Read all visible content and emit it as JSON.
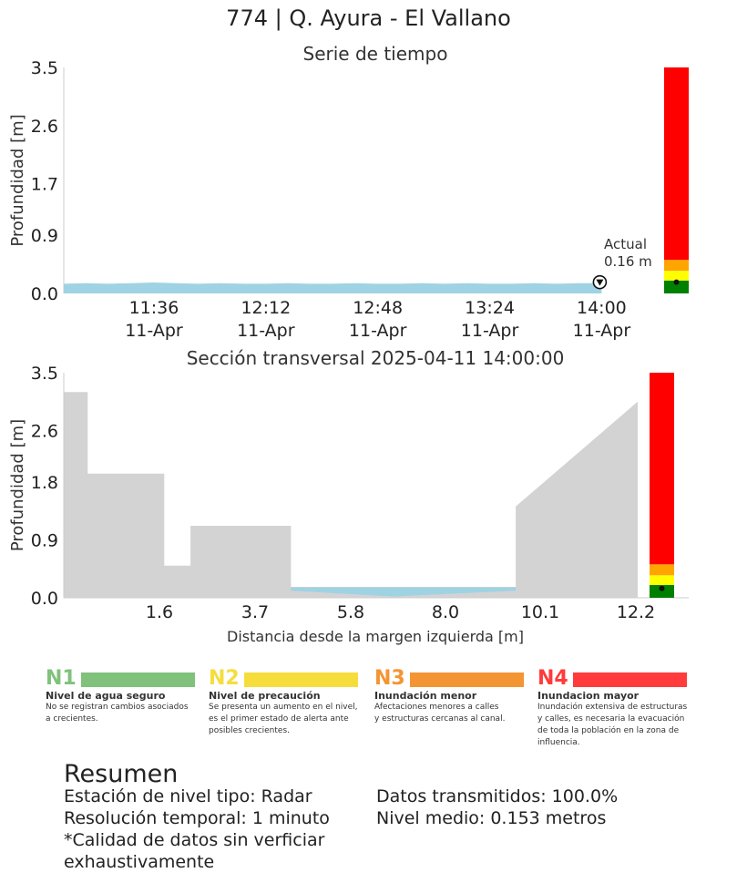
{
  "title": "774 | Q. Ayura - El Vallano",
  "chart_data": [
    {
      "type": "area",
      "title": "Serie de tiempo",
      "ylabel": "Profundidad [m]",
      "ylim": [
        0,
        3.5
      ],
      "yticks": [
        "0.0",
        "0.9",
        "1.7",
        "2.6",
        "3.5"
      ],
      "xticks": [
        {
          "time": "11:36",
          "date": "11-Apr"
        },
        {
          "time": "12:12",
          "date": "11-Apr"
        },
        {
          "time": "12:48",
          "date": "11-Apr"
        },
        {
          "time": "13:24",
          "date": "11-Apr"
        },
        {
          "time": "14:00",
          "date": "11-Apr"
        }
      ],
      "x_range": [
        "11:07",
        "14:16"
      ],
      "series_depth": [
        0.15,
        0.16,
        0.15,
        0.16,
        0.17,
        0.16,
        0.15,
        0.16,
        0.15,
        0.15,
        0.16,
        0.15,
        0.15,
        0.16,
        0.15,
        0.15,
        0.16,
        0.15,
        0.16,
        0.15,
        0.15,
        0.16,
        0.15,
        0.16,
        0.16
      ],
      "current": {
        "label": "Actual",
        "value_text": "0.16 m",
        "value": 0.16
      },
      "alert_levels": [
        {
          "from": 0.0,
          "to": 0.2,
          "color": "#008000"
        },
        {
          "from": 0.2,
          "to": 0.35,
          "color": "#ffff00"
        },
        {
          "from": 0.35,
          "to": 0.52,
          "color": "#ffa500"
        },
        {
          "from": 0.52,
          "to": 3.5,
          "color": "#ff0000"
        }
      ]
    },
    {
      "type": "area",
      "title": "Sección transversal 2025-04-11 14:00:00",
      "ylabel": "Profundidad [m]",
      "xlabel": "Distancia desde la margen izquierda [m]",
      "ylim": [
        0,
        3.5
      ],
      "xlim": [
        0,
        12.6
      ],
      "yticks": [
        "0.0",
        "0.9",
        "1.8",
        "2.6",
        "3.5"
      ],
      "xticks": [
        "1.6",
        "3.7",
        "5.8",
        "8.0",
        "10.1",
        "12.2"
      ],
      "xtick_values": [
        1.6,
        3.7,
        5.8,
        8.0,
        10.1,
        12.2
      ],
      "profile": [
        [
          0,
          3.2
        ],
        [
          0.5,
          3.2
        ],
        [
          0.5,
          1.93
        ],
        [
          2.1,
          1.93
        ],
        [
          2.1,
          0.5
        ],
        [
          2.65,
          0.5
        ],
        [
          2.65,
          1.12
        ],
        [
          4.75,
          1.12
        ],
        [
          4.75,
          0.17
        ],
        [
          9.45,
          0.17
        ],
        [
          9.45,
          1.42
        ],
        [
          12.0,
          3.05
        ],
        [
          12.0,
          0
        ]
      ],
      "water": [
        [
          4.75,
          0.16
        ],
        [
          9.45,
          0.16
        ],
        [
          9.45,
          0.11
        ],
        [
          6.9,
          0.02
        ],
        [
          4.75,
          0.11
        ]
      ],
      "water_level": 0.16,
      "alert_levels": [
        {
          "from": 0.0,
          "to": 0.2,
          "color": "#008000"
        },
        {
          "from": 0.2,
          "to": 0.35,
          "color": "#ffff00"
        },
        {
          "from": 0.35,
          "to": 0.52,
          "color": "#ffa500"
        },
        {
          "from": 0.52,
          "to": 3.5,
          "color": "#ff0000"
        }
      ]
    }
  ],
  "legend": [
    {
      "code": "N1",
      "name": "Nivel de agua seguro",
      "desc": [
        "No se registran cambios asociados",
        "a crecientes."
      ],
      "color": "#80c17c"
    },
    {
      "code": "N2",
      "name": "Nivel de precaución",
      "desc": [
        "Se presenta un aumento en el nivel,",
        "es el primer estado de alerta ante",
        "posibles crecientes."
      ],
      "color": "#f6dd3c"
    },
    {
      "code": "N3",
      "name": "Inundación menor",
      "desc": [
        "Afectaciones menores a calles",
        "y estructuras cercanas al canal."
      ],
      "color": "#f39533"
    },
    {
      "code": "N4",
      "name": "Inundacion mayor",
      "desc": [
        "Inundación extensiva de estructuras",
        "y calles, es necesaria la evacuación",
        "de toda la población en la zona de",
        "influencia."
      ],
      "color": "#ff3b3b"
    }
  ],
  "summary": {
    "title": "Resumen",
    "left": [
      "Estación de nivel tipo: Radar",
      "Resolución temporal: 1 minuto",
      "*Calidad de datos sin verficiar",
      "exhaustivamente"
    ],
    "right": [
      "Datos transmitidos: 100.0%",
      "Nivel medio: 0.153 metros"
    ]
  },
  "colors": {
    "water": "#9fd3e3",
    "ground": "#d3d3d3",
    "axis": "#cccccc"
  }
}
